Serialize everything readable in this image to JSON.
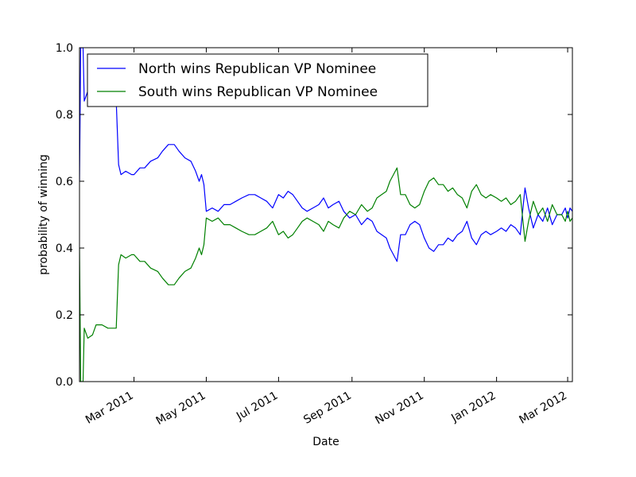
{
  "chart_data": {
    "type": "line",
    "title": "",
    "xlabel": "Date",
    "ylabel": "probability of winning",
    "xlim": [
      "2011-01-14",
      "2012-03-05"
    ],
    "ylim": [
      0,
      1
    ],
    "x_ticks": [
      {
        "date": "2011-03-01",
        "label": "Mar 2011"
      },
      {
        "date": "2011-05-01",
        "label": "May 2011"
      },
      {
        "date": "2011-07-01",
        "label": "Jul 2011"
      },
      {
        "date": "2011-09-01",
        "label": "Sep 2011"
      },
      {
        "date": "2011-11-01",
        "label": "Nov 2011"
      },
      {
        "date": "2012-01-01",
        "label": "Jan 2012"
      },
      {
        "date": "2012-03-01",
        "label": "Mar 2012"
      }
    ],
    "y_ticks": [
      "0.0",
      "0.2",
      "0.4",
      "0.6",
      "0.8",
      "1.0"
    ],
    "y_tick_values": [
      0,
      0.2,
      0.4,
      0.6,
      0.8,
      1.0
    ],
    "grid": false,
    "legend": "top-left",
    "series": [
      {
        "name": "North wins Republican VP Nominee",
        "color": "#0000ff",
        "points": [
          [
            "2011-01-14",
            0.6
          ],
          [
            "2011-01-15",
            1.0
          ],
          [
            "2011-01-17",
            1.0
          ],
          [
            "2011-01-18",
            0.84
          ],
          [
            "2011-01-21",
            0.87
          ],
          [
            "2011-01-25",
            0.86
          ],
          [
            "2011-01-28",
            0.83
          ],
          [
            "2011-02-02",
            0.83
          ],
          [
            "2011-02-07",
            0.84
          ],
          [
            "2011-02-11",
            0.84
          ],
          [
            "2011-02-14",
            0.84
          ],
          [
            "2011-02-16",
            0.65
          ],
          [
            "2011-02-18",
            0.62
          ],
          [
            "2011-02-22",
            0.63
          ],
          [
            "2011-02-27",
            0.62
          ],
          [
            "2011-03-01",
            0.62
          ],
          [
            "2011-03-06",
            0.64
          ],
          [
            "2011-03-10",
            0.64
          ],
          [
            "2011-03-15",
            0.66
          ],
          [
            "2011-03-21",
            0.67
          ],
          [
            "2011-03-25",
            0.69
          ],
          [
            "2011-03-30",
            0.71
          ],
          [
            "2011-04-04",
            0.71
          ],
          [
            "2011-04-08",
            0.69
          ],
          [
            "2011-04-13",
            0.67
          ],
          [
            "2011-04-18",
            0.66
          ],
          [
            "2011-04-22",
            0.63
          ],
          [
            "2011-04-25",
            0.6
          ],
          [
            "2011-04-27",
            0.62
          ],
          [
            "2011-04-29",
            0.59
          ],
          [
            "2011-05-01",
            0.51
          ],
          [
            "2011-05-06",
            0.52
          ],
          [
            "2011-05-11",
            0.51
          ],
          [
            "2011-05-16",
            0.53
          ],
          [
            "2011-05-21",
            0.53
          ],
          [
            "2011-05-26",
            0.54
          ],
          [
            "2011-05-31",
            0.55
          ],
          [
            "2011-06-06",
            0.56
          ],
          [
            "2011-06-11",
            0.56
          ],
          [
            "2011-06-16",
            0.55
          ],
          [
            "2011-06-21",
            0.54
          ],
          [
            "2011-06-26",
            0.52
          ],
          [
            "2011-07-01",
            0.56
          ],
          [
            "2011-07-05",
            0.55
          ],
          [
            "2011-07-09",
            0.57
          ],
          [
            "2011-07-13",
            0.56
          ],
          [
            "2011-07-17",
            0.54
          ],
          [
            "2011-07-21",
            0.52
          ],
          [
            "2011-07-25",
            0.51
          ],
          [
            "2011-07-30",
            0.52
          ],
          [
            "2011-08-04",
            0.53
          ],
          [
            "2011-08-08",
            0.55
          ],
          [
            "2011-08-12",
            0.52
          ],
          [
            "2011-08-16",
            0.53
          ],
          [
            "2011-08-21",
            0.54
          ],
          [
            "2011-08-25",
            0.51
          ],
          [
            "2011-08-30",
            0.49
          ],
          [
            "2011-09-04",
            0.5
          ],
          [
            "2011-09-09",
            0.47
          ],
          [
            "2011-09-14",
            0.49
          ],
          [
            "2011-09-18",
            0.48
          ],
          [
            "2011-09-22",
            0.45
          ],
          [
            "2011-09-26",
            0.44
          ],
          [
            "2011-09-30",
            0.43
          ],
          [
            "2011-10-03",
            0.4
          ],
          [
            "2011-10-06",
            0.38
          ],
          [
            "2011-10-09",
            0.36
          ],
          [
            "2011-10-12",
            0.44
          ],
          [
            "2011-10-16",
            0.44
          ],
          [
            "2011-10-20",
            0.47
          ],
          [
            "2011-10-24",
            0.48
          ],
          [
            "2011-10-28",
            0.47
          ],
          [
            "2011-11-01",
            0.43
          ],
          [
            "2011-11-05",
            0.4
          ],
          [
            "2011-11-09",
            0.39
          ],
          [
            "2011-11-13",
            0.41
          ],
          [
            "2011-11-17",
            0.41
          ],
          [
            "2011-11-21",
            0.43
          ],
          [
            "2011-11-25",
            0.42
          ],
          [
            "2011-11-29",
            0.44
          ],
          [
            "2011-12-03",
            0.45
          ],
          [
            "2011-12-07",
            0.48
          ],
          [
            "2011-12-11",
            0.43
          ],
          [
            "2011-12-15",
            0.41
          ],
          [
            "2011-12-19",
            0.44
          ],
          [
            "2011-12-23",
            0.45
          ],
          [
            "2011-12-27",
            0.44
          ],
          [
            "2012-01-01",
            0.45
          ],
          [
            "2012-01-05",
            0.46
          ],
          [
            "2012-01-09",
            0.45
          ],
          [
            "2012-01-13",
            0.47
          ],
          [
            "2012-01-17",
            0.46
          ],
          [
            "2012-01-21",
            0.44
          ],
          [
            "2012-01-25",
            0.58
          ],
          [
            "2012-01-28",
            0.52
          ],
          [
            "2012-02-01",
            0.46
          ],
          [
            "2012-02-05",
            0.5
          ],
          [
            "2012-02-09",
            0.48
          ],
          [
            "2012-02-13",
            0.52
          ],
          [
            "2012-02-17",
            0.47
          ],
          [
            "2012-02-21",
            0.5
          ],
          [
            "2012-02-25",
            0.5
          ],
          [
            "2012-02-28",
            0.52
          ],
          [
            "2012-03-01",
            0.49
          ],
          [
            "2012-03-03",
            0.52
          ],
          [
            "2012-03-05",
            0.51
          ]
        ]
      },
      {
        "name": "South wins Republican VP Nominee",
        "color": "#008000",
        "points": [
          [
            "2011-01-14",
            0.4
          ],
          [
            "2011-01-15",
            0.0
          ],
          [
            "2011-01-17",
            0.0
          ],
          [
            "2011-01-18",
            0.16
          ],
          [
            "2011-01-21",
            0.13
          ],
          [
            "2011-01-25",
            0.14
          ],
          [
            "2011-01-28",
            0.17
          ],
          [
            "2011-02-02",
            0.17
          ],
          [
            "2011-02-07",
            0.16
          ],
          [
            "2011-02-11",
            0.16
          ],
          [
            "2011-02-14",
            0.16
          ],
          [
            "2011-02-16",
            0.35
          ],
          [
            "2011-02-18",
            0.38
          ],
          [
            "2011-02-22",
            0.37
          ],
          [
            "2011-02-27",
            0.38
          ],
          [
            "2011-03-01",
            0.38
          ],
          [
            "2011-03-06",
            0.36
          ],
          [
            "2011-03-10",
            0.36
          ],
          [
            "2011-03-15",
            0.34
          ],
          [
            "2011-03-21",
            0.33
          ],
          [
            "2011-03-25",
            0.31
          ],
          [
            "2011-03-30",
            0.29
          ],
          [
            "2011-04-04",
            0.29
          ],
          [
            "2011-04-08",
            0.31
          ],
          [
            "2011-04-13",
            0.33
          ],
          [
            "2011-04-18",
            0.34
          ],
          [
            "2011-04-22",
            0.37
          ],
          [
            "2011-04-25",
            0.4
          ],
          [
            "2011-04-27",
            0.38
          ],
          [
            "2011-04-29",
            0.41
          ],
          [
            "2011-05-01",
            0.49
          ],
          [
            "2011-05-06",
            0.48
          ],
          [
            "2011-05-11",
            0.49
          ],
          [
            "2011-05-16",
            0.47
          ],
          [
            "2011-05-21",
            0.47
          ],
          [
            "2011-05-26",
            0.46
          ],
          [
            "2011-05-31",
            0.45
          ],
          [
            "2011-06-06",
            0.44
          ],
          [
            "2011-06-11",
            0.44
          ],
          [
            "2011-06-16",
            0.45
          ],
          [
            "2011-06-21",
            0.46
          ],
          [
            "2011-06-26",
            0.48
          ],
          [
            "2011-07-01",
            0.44
          ],
          [
            "2011-07-05",
            0.45
          ],
          [
            "2011-07-09",
            0.43
          ],
          [
            "2011-07-13",
            0.44
          ],
          [
            "2011-07-17",
            0.46
          ],
          [
            "2011-07-21",
            0.48
          ],
          [
            "2011-07-25",
            0.49
          ],
          [
            "2011-07-30",
            0.48
          ],
          [
            "2011-08-04",
            0.47
          ],
          [
            "2011-08-08",
            0.45
          ],
          [
            "2011-08-12",
            0.48
          ],
          [
            "2011-08-16",
            0.47
          ],
          [
            "2011-08-21",
            0.46
          ],
          [
            "2011-08-25",
            0.49
          ],
          [
            "2011-08-30",
            0.51
          ],
          [
            "2011-09-04",
            0.5
          ],
          [
            "2011-09-09",
            0.53
          ],
          [
            "2011-09-14",
            0.51
          ],
          [
            "2011-09-18",
            0.52
          ],
          [
            "2011-09-22",
            0.55
          ],
          [
            "2011-09-26",
            0.56
          ],
          [
            "2011-09-30",
            0.57
          ],
          [
            "2011-10-03",
            0.6
          ],
          [
            "2011-10-06",
            0.62
          ],
          [
            "2011-10-09",
            0.64
          ],
          [
            "2011-10-12",
            0.56
          ],
          [
            "2011-10-16",
            0.56
          ],
          [
            "2011-10-20",
            0.53
          ],
          [
            "2011-10-24",
            0.52
          ],
          [
            "2011-10-28",
            0.53
          ],
          [
            "2011-11-01",
            0.57
          ],
          [
            "2011-11-05",
            0.6
          ],
          [
            "2011-11-09",
            0.61
          ],
          [
            "2011-11-13",
            0.59
          ],
          [
            "2011-11-17",
            0.59
          ],
          [
            "2011-11-21",
            0.57
          ],
          [
            "2011-11-25",
            0.58
          ],
          [
            "2011-11-29",
            0.56
          ],
          [
            "2011-12-03",
            0.55
          ],
          [
            "2011-12-07",
            0.52
          ],
          [
            "2011-12-11",
            0.57
          ],
          [
            "2011-12-15",
            0.59
          ],
          [
            "2011-12-19",
            0.56
          ],
          [
            "2011-12-23",
            0.55
          ],
          [
            "2011-12-27",
            0.56
          ],
          [
            "2012-01-01",
            0.55
          ],
          [
            "2012-01-05",
            0.54
          ],
          [
            "2012-01-09",
            0.55
          ],
          [
            "2012-01-13",
            0.53
          ],
          [
            "2012-01-17",
            0.54
          ],
          [
            "2012-01-21",
            0.56
          ],
          [
            "2012-01-25",
            0.42
          ],
          [
            "2012-01-28",
            0.48
          ],
          [
            "2012-02-01",
            0.54
          ],
          [
            "2012-02-05",
            0.5
          ],
          [
            "2012-02-09",
            0.52
          ],
          [
            "2012-02-13",
            0.48
          ],
          [
            "2012-02-17",
            0.53
          ],
          [
            "2012-02-21",
            0.5
          ],
          [
            "2012-02-25",
            0.5
          ],
          [
            "2012-02-28",
            0.48
          ],
          [
            "2012-03-01",
            0.51
          ],
          [
            "2012-03-03",
            0.48
          ],
          [
            "2012-03-05",
            0.49
          ]
        ]
      }
    ]
  }
}
